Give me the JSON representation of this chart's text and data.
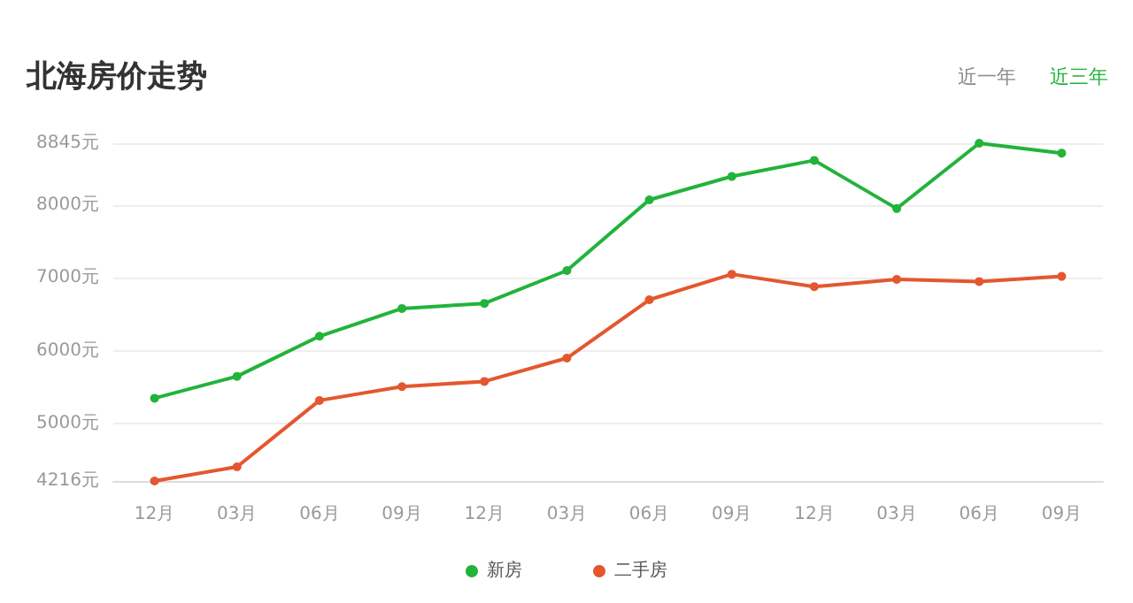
{
  "chart_data": {
    "type": "line",
    "title": "北海房价走势",
    "annotations": [
      "近一年",
      "近三年"
    ],
    "categories": [
      "12月",
      "03月",
      "06月",
      "09月",
      "12月",
      "03月",
      "06月",
      "09月",
      "12月",
      "03月",
      "06月",
      "09月"
    ],
    "series": [
      {
        "name": "新房",
        "color": "#22b33a",
        "values": [
          5350,
          5650,
          6200,
          6580,
          6650,
          7100,
          8070,
          8390,
          8610,
          7950,
          8845,
          8710
        ]
      },
      {
        "name": "二手房",
        "color": "#e4572e",
        "values": [
          4216,
          4410,
          5320,
          5510,
          5580,
          5900,
          6700,
          7050,
          6880,
          6980,
          6950,
          7020
        ]
      }
    ],
    "ylim": [
      4216,
      8845
    ],
    "yticks": [
      {
        "value": 4216,
        "label": "4216元"
      },
      {
        "value": 5000,
        "label": "5000元"
      },
      {
        "value": 6000,
        "label": "6000元"
      },
      {
        "value": 7000,
        "label": "7000元"
      },
      {
        "value": 8000,
        "label": "8000元"
      },
      {
        "value": 8845,
        "label": "8845元"
      }
    ],
    "grid": "y",
    "legend": "bottom",
    "marker": "circle",
    "line_style": "solid"
  }
}
